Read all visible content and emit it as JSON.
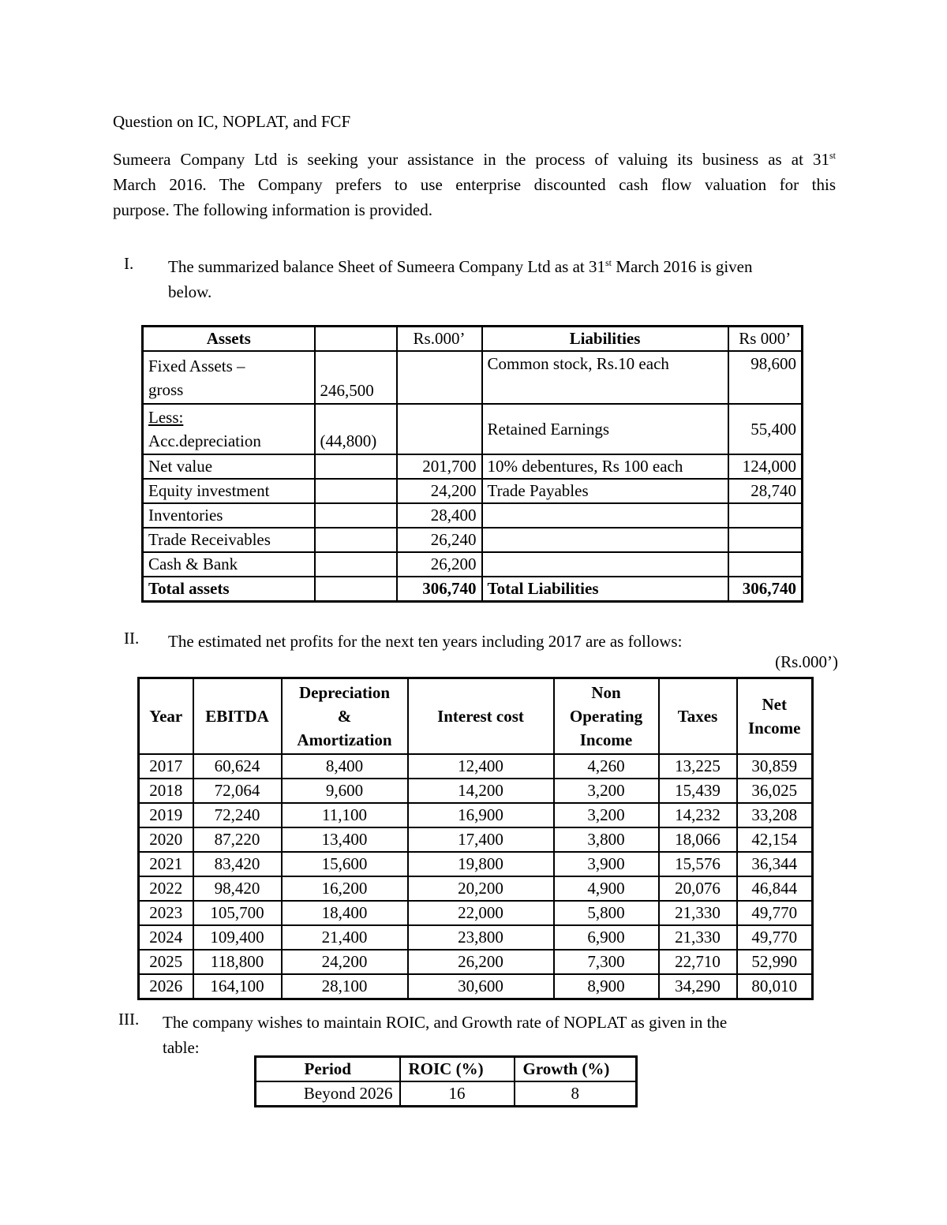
{
  "title": "Question on IC, NOPLAT, and FCF",
  "intro": {
    "line1_text": "Sumeera Company Ltd is seeking your assistance in the process of valuing its business as at",
    "line1_num": "31",
    "line1_sup": "st",
    "line2": "March 2016. The Company prefers to use enterprise discounted cash flow valuation for this",
    "line3": "purpose. The following information is provided."
  },
  "sections": {
    "one": {
      "numeral": "I.",
      "text_before_sup": "The summarized balance Sheet of Sumeera Company Ltd as at 31",
      "sup": "st",
      "text_after_sup": " March 2016 is given",
      "line2": "below."
    },
    "two": {
      "numeral": "II.",
      "text": "The estimated net profits for the next ten years including 2017 are as follows:",
      "units_note": "(Rs.000’)"
    },
    "three": {
      "numeral": "III.",
      "line1": "The company wishes to maintain ROIC, and Growth rate of NOPLAT as given in the",
      "line2": "table:"
    }
  },
  "balance_sheet": {
    "headers": {
      "assets": "Assets",
      "rs1": "Rs.000’",
      "liabilities": "Liabilities",
      "rs2": "Rs 000’"
    },
    "fixed_assets": {
      "label1": "Fixed Assets –",
      "label2": "gross",
      "value": "246,500",
      "liab_label": "Common stock, Rs.10 each",
      "liab_value": "98,600"
    },
    "less": {
      "label1": "Less:",
      "label2": "Acc.depreciation",
      "value": "(44,800)",
      "liab_label": "Retained Earnings",
      "liab_value": "55,400"
    },
    "rows": [
      {
        "label": "Net value",
        "value": "201,700",
        "liab_label": "10% debentures, Rs 100 each",
        "liab_value": "124,000"
      },
      {
        "label": "Equity investment",
        "value": "24,200",
        "liab_label": "Trade Payables",
        "liab_value": "28,740"
      },
      {
        "label": "Inventories",
        "value": "28,400",
        "liab_label": "",
        "liab_value": ""
      },
      {
        "label": "Trade Receivables",
        "value": "26,240",
        "liab_label": "",
        "liab_value": ""
      },
      {
        "label": "Cash & Bank",
        "value": "26,200",
        "liab_label": "",
        "liab_value": ""
      }
    ],
    "total": {
      "label": "Total assets",
      "value": "306,740",
      "liab_label": "Total Liabilities",
      "liab_value": "306,740"
    }
  },
  "profit_table": {
    "headers": [
      [
        "Year"
      ],
      [
        "EBITDA"
      ],
      [
        "Depreciation",
        "&",
        "Amortization"
      ],
      [
        "Interest cost"
      ],
      [
        "Non",
        "Operating",
        "Income"
      ],
      [
        "Taxes"
      ],
      [
        "Net",
        "Income"
      ]
    ],
    "rows": [
      [
        "2017",
        "60,624",
        "8,400",
        "12,400",
        "4,260",
        "13,225",
        "30,859"
      ],
      [
        "2018",
        "72,064",
        "9,600",
        "14,200",
        "3,200",
        "15,439",
        "36,025"
      ],
      [
        "2019",
        "72,240",
        "11,100",
        "16,900",
        "3,200",
        "14,232",
        "33,208"
      ],
      [
        "2020",
        "87,220",
        "13,400",
        "17,400",
        "3,800",
        "18,066",
        "42,154"
      ],
      [
        "2021",
        "83,420",
        "15,600",
        "19,800",
        "3,900",
        "15,576",
        "36,344"
      ],
      [
        "2022",
        "98,420",
        "16,200",
        "20,200",
        "4,900",
        "20,076",
        "46,844"
      ],
      [
        "2023",
        "105,700",
        "18,400",
        "22,000",
        "5,800",
        "21,330",
        "49,770"
      ],
      [
        "2024",
        "109,400",
        "21,400",
        "23,800",
        "6,900",
        "21,330",
        "49,770"
      ],
      [
        "2025",
        "118,800",
        "24,200",
        "26,200",
        "7,300",
        "22,710",
        "52,990"
      ],
      [
        "2026",
        "164,100",
        "28,100",
        "30,600",
        "8,900",
        "34,290",
        "80,010"
      ]
    ]
  },
  "roic_table": {
    "headers": [
      "Period",
      "ROIC (%)",
      "Growth (%)"
    ],
    "rows": [
      [
        "Beyond 2026",
        "16",
        "8"
      ]
    ]
  }
}
